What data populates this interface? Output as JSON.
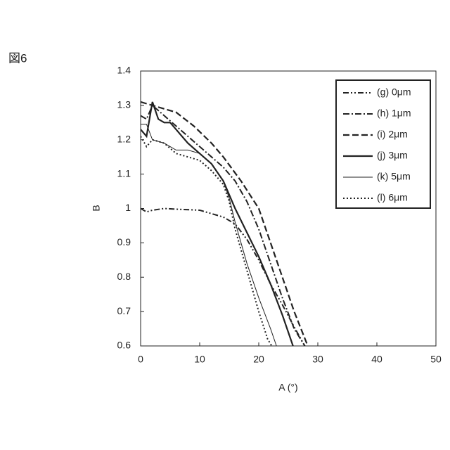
{
  "chart_data": {
    "type": "line",
    "figure_label": "図6",
    "x_label": "A (°)",
    "y_label": "B",
    "xlim": [
      0,
      50
    ],
    "xticks": [
      0,
      10,
      20,
      30,
      40,
      50
    ],
    "ylim": [
      0.6,
      1.4
    ],
    "yticks": [
      0.6,
      0.7,
      0.8,
      0.9,
      1,
      1.1,
      1.2,
      1.3,
      1.4
    ],
    "legend": "upper right",
    "series": [
      {
        "name": "(g) 0μm",
        "color": "#222",
        "width": 2,
        "dash": "8 3 2 3 2 3",
        "x": [
          0,
          1,
          2,
          4,
          6,
          10,
          12,
          14,
          16,
          18,
          20,
          22,
          24,
          26,
          27.8
        ],
        "values": [
          1.0,
          0.99,
          0.995,
          1.0,
          0.998,
          0.995,
          0.985,
          0.975,
          0.955,
          0.91,
          0.85,
          0.78,
          0.72,
          0.655,
          0.6
        ]
      },
      {
        "name": "(h) 1μm",
        "color": "#222",
        "width": 2,
        "dash": "9 3 2 3",
        "x": [
          0,
          1,
          2,
          4,
          8,
          12,
          14,
          16,
          18,
          20,
          22,
          24,
          26,
          27.8
        ],
        "values": [
          1.27,
          1.26,
          1.3,
          1.27,
          1.21,
          1.15,
          1.12,
          1.08,
          1.02,
          0.94,
          0.84,
          0.74,
          0.65,
          0.6
        ]
      },
      {
        "name": "(i) 2μm",
        "color": "#222",
        "width": 2.2,
        "dash": "9 4",
        "x": [
          0,
          2,
          4,
          6,
          9,
          12,
          14,
          17,
          20,
          22,
          24,
          26,
          28.3
        ],
        "values": [
          1.31,
          1.3,
          1.29,
          1.28,
          1.24,
          1.19,
          1.15,
          1.08,
          1.0,
          0.9,
          0.8,
          0.7,
          0.6
        ]
      },
      {
        "name": "(j) 3μm",
        "color": "#222",
        "width": 2.2,
        "dash": "none",
        "x": [
          0,
          1,
          2,
          3,
          4,
          5,
          6,
          8,
          10,
          12,
          14,
          16,
          18,
          20,
          22,
          24,
          25.8
        ],
        "values": [
          1.23,
          1.21,
          1.31,
          1.26,
          1.25,
          1.25,
          1.23,
          1.19,
          1.16,
          1.13,
          1.08,
          1.0,
          0.93,
          0.86,
          0.78,
          0.69,
          0.6
        ]
      },
      {
        "name": "(k) 5μm",
        "color": "#222",
        "width": 1,
        "dash": "none",
        "x": [
          0,
          1,
          2,
          4,
          6,
          8,
          10,
          12,
          14,
          15,
          16,
          18,
          20,
          22,
          23
        ],
        "values": [
          1.245,
          1.245,
          1.2,
          1.19,
          1.17,
          1.17,
          1.16,
          1.13,
          1.08,
          1.03,
          0.96,
          0.84,
          0.74,
          0.65,
          0.6
        ]
      },
      {
        "name": "(l) 6μm",
        "color": "#222",
        "width": 2,
        "dash": "2 3",
        "x": [
          0,
          1,
          2,
          4,
          6,
          8,
          10,
          12,
          14,
          15,
          16,
          18,
          20,
          21.5,
          22.2
        ],
        "values": [
          1.21,
          1.18,
          1.2,
          1.19,
          1.16,
          1.15,
          1.14,
          1.11,
          1.07,
          1.02,
          0.94,
          0.82,
          0.7,
          0.62,
          0.6
        ]
      }
    ]
  }
}
